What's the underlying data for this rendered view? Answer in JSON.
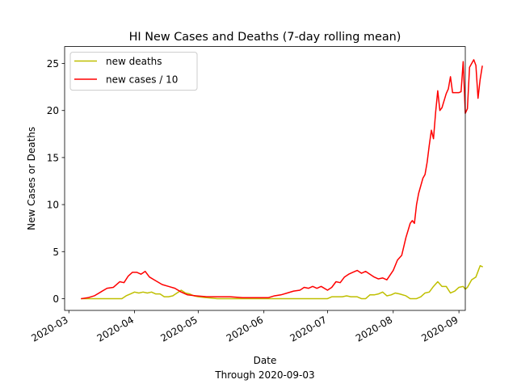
{
  "chart_data": {
    "type": "line",
    "title": "HI New Cases and Deaths (7-day rolling mean)",
    "xlabel": "Date",
    "xlabel_sub": "Through 2020-09-03",
    "ylabel": "New Cases or Deaths",
    "x_ticks": [
      "2020-03",
      "2020-04",
      "2020-05",
      "2020-06",
      "2020-07",
      "2020-08",
      "2020-09"
    ],
    "y_ticks": [
      0,
      5,
      10,
      15,
      20,
      25
    ],
    "xlim": [
      "2020-02-28",
      "2020-09-04"
    ],
    "ylim": [
      -1.25,
      26.8
    ],
    "legend_position": "upper-left",
    "series": [
      {
        "name": "new deaths",
        "color": "#bfbf00",
        "points": [
          [
            "2020-03-07",
            0
          ],
          [
            "2020-03-26",
            0
          ],
          [
            "2020-03-28",
            0.3
          ],
          [
            "2020-03-30",
            0.5
          ],
          [
            "2020-04-01",
            0.7
          ],
          [
            "2020-04-03",
            0.6
          ],
          [
            "2020-04-05",
            0.7
          ],
          [
            "2020-04-07",
            0.6
          ],
          [
            "2020-04-09",
            0.7
          ],
          [
            "2020-04-11",
            0.5
          ],
          [
            "2020-04-13",
            0.5
          ],
          [
            "2020-04-15",
            0.2
          ],
          [
            "2020-04-17",
            0.2
          ],
          [
            "2020-04-19",
            0.3
          ],
          [
            "2020-04-21",
            0.6
          ],
          [
            "2020-04-23",
            0.9
          ],
          [
            "2020-04-25",
            0.6
          ],
          [
            "2020-04-27",
            0.5
          ],
          [
            "2020-04-29",
            0.3
          ],
          [
            "2020-05-01",
            0.2
          ],
          [
            "2020-05-05",
            0.1
          ],
          [
            "2020-05-10",
            0
          ],
          [
            "2020-07-01",
            0
          ],
          [
            "2020-07-03",
            0.2
          ],
          [
            "2020-07-06",
            0.2
          ],
          [
            "2020-07-08",
            0.2
          ],
          [
            "2020-07-10",
            0.3
          ],
          [
            "2020-07-12",
            0.2
          ],
          [
            "2020-07-15",
            0.2
          ],
          [
            "2020-07-17",
            0.0
          ],
          [
            "2020-07-19",
            0.0
          ],
          [
            "2020-07-21",
            0.4
          ],
          [
            "2020-07-23",
            0.4
          ],
          [
            "2020-07-25",
            0.5
          ],
          [
            "2020-07-27",
            0.7
          ],
          [
            "2020-07-29",
            0.3
          ],
          [
            "2020-07-31",
            0.4
          ],
          [
            "2020-08-02",
            0.6
          ],
          [
            "2020-08-04",
            0.5
          ],
          [
            "2020-08-07",
            0.3
          ],
          [
            "2020-08-09",
            0.0
          ],
          [
            "2020-08-12",
            0.0
          ],
          [
            "2020-08-14",
            0.2
          ],
          [
            "2020-08-16",
            0.6
          ],
          [
            "2020-08-18",
            0.7
          ],
          [
            "2020-08-20",
            1.3
          ],
          [
            "2020-08-22",
            1.8
          ],
          [
            "2020-08-24",
            1.3
          ],
          [
            "2020-08-26",
            1.3
          ],
          [
            "2020-08-28",
            0.6
          ],
          [
            "2020-08-30",
            0.8
          ],
          [
            "2020-09-01",
            1.2
          ],
          [
            "2020-09-03",
            1.3
          ],
          [
            "2020-09-04",
            1.0
          ],
          [
            "2020-09-05",
            1.2
          ],
          [
            "2020-09-07",
            2.0
          ],
          [
            "2020-09-09",
            2.3
          ],
          [
            "2020-09-11",
            3.5
          ],
          [
            "2020-09-12",
            3.4
          ]
        ]
      },
      {
        "name": "new cases / 10",
        "color": "#ff0000",
        "points": [
          [
            "2020-03-07",
            0.0
          ],
          [
            "2020-03-10",
            0.1
          ],
          [
            "2020-03-13",
            0.3
          ],
          [
            "2020-03-16",
            0.7
          ],
          [
            "2020-03-19",
            1.1
          ],
          [
            "2020-03-22",
            1.2
          ],
          [
            "2020-03-25",
            1.8
          ],
          [
            "2020-03-27",
            1.7
          ],
          [
            "2020-03-29",
            2.4
          ],
          [
            "2020-03-31",
            2.8
          ],
          [
            "2020-04-02",
            2.8
          ],
          [
            "2020-04-04",
            2.6
          ],
          [
            "2020-04-06",
            2.9
          ],
          [
            "2020-04-08",
            2.3
          ],
          [
            "2020-04-11",
            1.9
          ],
          [
            "2020-04-14",
            1.5
          ],
          [
            "2020-04-17",
            1.3
          ],
          [
            "2020-04-20",
            1.1
          ],
          [
            "2020-04-23",
            0.7
          ],
          [
            "2020-04-26",
            0.4
          ],
          [
            "2020-04-30",
            0.3
          ],
          [
            "2020-05-05",
            0.2
          ],
          [
            "2020-05-10",
            0.2
          ],
          [
            "2020-05-16",
            0.2
          ],
          [
            "2020-05-22",
            0.1
          ],
          [
            "2020-05-28",
            0.1
          ],
          [
            "2020-06-03",
            0.1
          ],
          [
            "2020-06-06",
            0.3
          ],
          [
            "2020-06-09",
            0.4
          ],
          [
            "2020-06-12",
            0.6
          ],
          [
            "2020-06-15",
            0.8
          ],
          [
            "2020-06-18",
            0.9
          ],
          [
            "2020-06-20",
            1.2
          ],
          [
            "2020-06-22",
            1.1
          ],
          [
            "2020-06-24",
            1.3
          ],
          [
            "2020-06-26",
            1.1
          ],
          [
            "2020-06-28",
            1.3
          ],
          [
            "2020-07-01",
            0.9
          ],
          [
            "2020-07-03",
            1.2
          ],
          [
            "2020-07-05",
            1.8
          ],
          [
            "2020-07-07",
            1.7
          ],
          [
            "2020-07-09",
            2.3
          ],
          [
            "2020-07-11",
            2.6
          ],
          [
            "2020-07-13",
            2.8
          ],
          [
            "2020-07-15",
            3.0
          ],
          [
            "2020-07-17",
            2.7
          ],
          [
            "2020-07-19",
            2.9
          ],
          [
            "2020-07-21",
            2.6
          ],
          [
            "2020-07-23",
            2.3
          ],
          [
            "2020-07-25",
            2.1
          ],
          [
            "2020-07-27",
            2.2
          ],
          [
            "2020-07-29",
            2.0
          ],
          [
            "2020-08-01",
            3.0
          ],
          [
            "2020-08-03",
            4.1
          ],
          [
            "2020-08-05",
            4.6
          ],
          [
            "2020-08-07",
            6.5
          ],
          [
            "2020-08-09",
            8.0
          ],
          [
            "2020-08-10",
            8.3
          ],
          [
            "2020-08-11",
            8.0
          ],
          [
            "2020-08-12",
            10.0
          ],
          [
            "2020-08-13",
            11.2
          ],
          [
            "2020-08-15",
            12.8
          ],
          [
            "2020-08-16",
            13.2
          ],
          [
            "2020-08-17",
            14.5
          ],
          [
            "2020-08-18",
            16.3
          ],
          [
            "2020-08-19",
            17.9
          ],
          [
            "2020-08-20",
            17.0
          ],
          [
            "2020-08-21",
            19.8
          ],
          [
            "2020-08-22",
            22.1
          ],
          [
            "2020-08-23",
            20.0
          ],
          [
            "2020-08-24",
            20.3
          ],
          [
            "2020-08-26",
            21.8
          ],
          [
            "2020-08-27",
            22.3
          ],
          [
            "2020-08-28",
            23.6
          ],
          [
            "2020-08-29",
            21.9
          ],
          [
            "2020-08-31",
            21.9
          ],
          [
            "2020-09-01",
            21.9
          ],
          [
            "2020-09-02",
            22.0
          ],
          [
            "2020-09-03",
            25.2
          ],
          [
            "2020-09-04",
            19.7
          ],
          [
            "2020-09-05",
            20.2
          ],
          [
            "2020-09-06",
            24.6
          ],
          [
            "2020-09-08",
            25.4
          ],
          [
            "2020-09-09",
            24.8
          ],
          [
            "2020-09-10",
            21.3
          ],
          [
            "2020-09-11",
            23.3
          ],
          [
            "2020-09-12",
            24.7
          ]
        ]
      }
    ]
  }
}
